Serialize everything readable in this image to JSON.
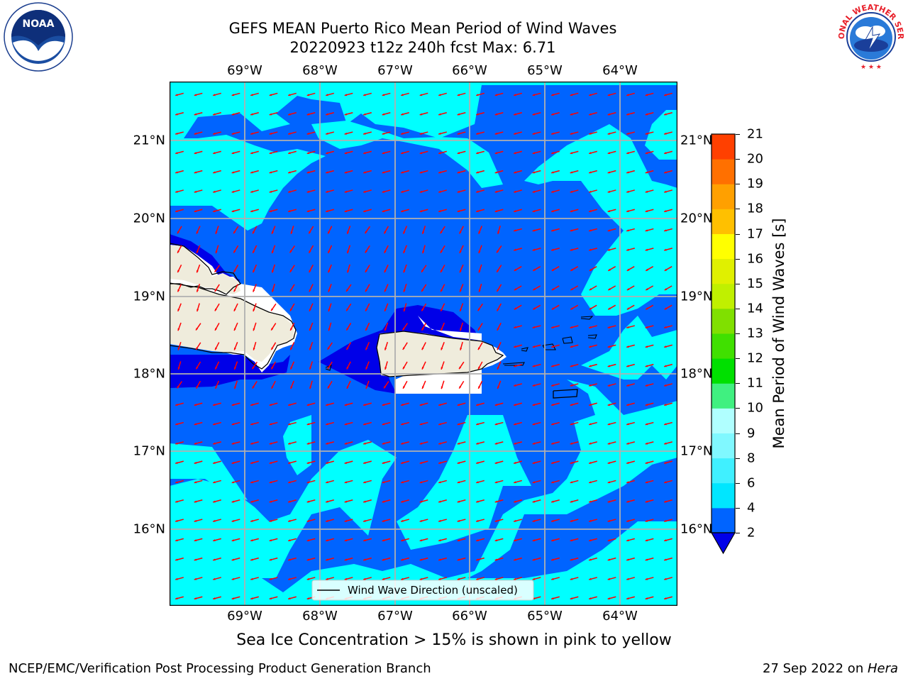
{
  "header": {
    "title_line1": "GEFS MEAN Puerto Rico Mean Period of Wind Waves",
    "title_line2": "20220923 t12z 240h fcst   Max: 6.71"
  },
  "logos": {
    "left": {
      "name": "noaa-logo",
      "text": "NOAA",
      "ring_text": "NATIONAL OCEANIC AND ATMOSPHERIC ADMINISTRATION · U.S. DEPARTMENT OF COMMERCE"
    },
    "right": {
      "name": "nws-logo",
      "ring_text": "NATIONAL WEATHER SERVICE"
    }
  },
  "map": {
    "lon_ticks": [
      "69°W",
      "68°W",
      "67°W",
      "66°W",
      "65°W",
      "64°W"
    ],
    "lat_ticks": [
      "21°N",
      "20°N",
      "19°N",
      "18°N",
      "17°N",
      "16°N"
    ],
    "legend": "Wind Wave Direction (unscaled)",
    "arrow_color": "#ff0000",
    "land_color": "#efecdc",
    "coast_color": "#000000"
  },
  "colorbar": {
    "label": "Mean Period of Wind Waves [s]",
    "ticks": [
      "2",
      "4",
      "6",
      "8",
      "9",
      "10",
      "11",
      "12",
      "13",
      "14",
      "15",
      "16",
      "17",
      "18",
      "19",
      "20",
      "21"
    ],
    "colors": [
      "#0064ff",
      "#00e6ff",
      "#40f0ff",
      "#80f8ff",
      "#b0ffff",
      "#40f080",
      "#00e000",
      "#40e000",
      "#80e000",
      "#c0f000",
      "#e0f000",
      "#ffff00",
      "#ffc000",
      "#ffa000",
      "#ff7000",
      "#ff4000",
      "#ff0000"
    ],
    "under_color": "#0000e8"
  },
  "note": "Sea Ice Concentration > 15% is shown in pink to yellow",
  "footer": {
    "left": "NCEP/EMC/Verification Post Processing Product Generation Branch",
    "right_date": "27 Sep 2022 on ",
    "right_host": "Hera"
  }
}
